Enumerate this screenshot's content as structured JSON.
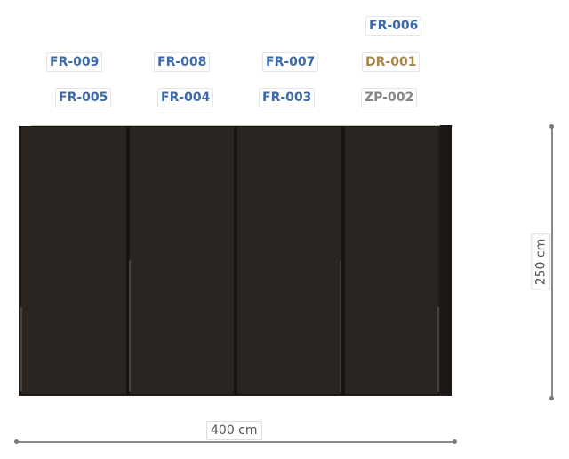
{
  "component_tags": {
    "row1": [
      {
        "id": "FR-006",
        "color": "#3d6aa6"
      }
    ],
    "row2": [
      {
        "id": "FR-009",
        "color": "#3d6aa6"
      },
      {
        "id": "FR-008",
        "color": "#3d6aa6"
      },
      {
        "id": "FR-007",
        "color": "#3d6aa6"
      },
      {
        "id": "DR-001",
        "color": "#a88445"
      }
    ],
    "row3": [
      {
        "id": "FR-005",
        "color": "#3d6aa6"
      },
      {
        "id": "FR-004",
        "color": "#3d6aa6"
      },
      {
        "id": "FR-003",
        "color": "#3d6aa6"
      },
      {
        "id": "ZP-002",
        "color": "#858585"
      }
    ]
  },
  "wardrobe": {
    "door_count": 4,
    "finish_color": "#2b2521"
  },
  "dimensions": {
    "width_label": "400 cm",
    "height_label": "250 cm"
  }
}
